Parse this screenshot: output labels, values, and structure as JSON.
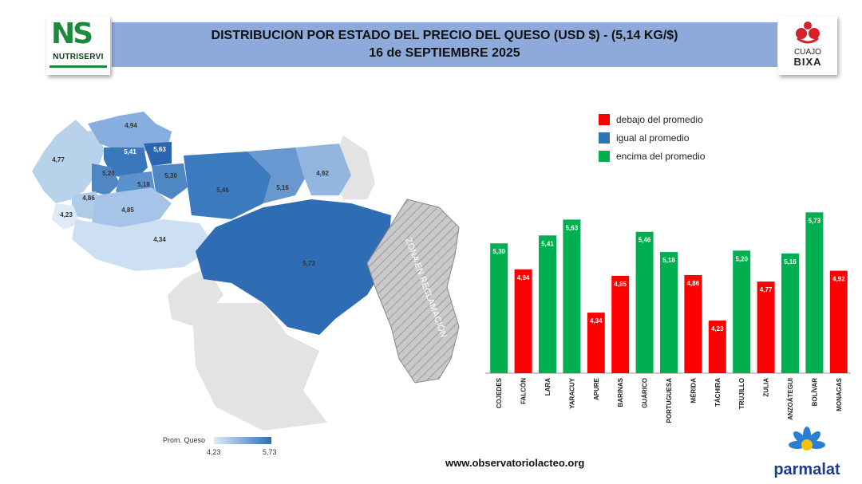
{
  "header": {
    "title_line1": "DISTRIBUCION POR ESTADO DEL PRECIO DEL QUESO (USD $)  - (5,14 KG/$)",
    "title_line2": "16 de SEPTIEMBRE 2025"
  },
  "logos": {
    "left_mark": "NS",
    "left_name": "NUTRISERVI",
    "right_line1": "CUAJO",
    "right_line2": "BIXA",
    "bottom_right": "parmalat"
  },
  "legend": {
    "items": [
      {
        "label": "debajo del promedio",
        "color": "#ff0000"
      },
      {
        "label": "igual al promedio",
        "color": "#2e75b6"
      },
      {
        "label": "encima del promedio",
        "color": "#00b050"
      }
    ]
  },
  "map": {
    "claim_zone_label": "ZONA EN RECLAMACIÓN",
    "scale_title": "Prom. Queso",
    "scale_min": "4,23",
    "scale_max": "5,73",
    "state_labels": [
      "4,94",
      "4,77",
      "5,41",
      "5,63",
      "5,20",
      "5,30",
      "5,18",
      "5,46",
      "5,16",
      "4,92",
      "4,86",
      "4,23",
      "4,85",
      "4,34",
      "5,73"
    ]
  },
  "footer": {
    "website": "www.observatoriolacteo.org"
  },
  "chart_data": {
    "type": "bar",
    "categories": [
      "COJEDES",
      "FALCÓN",
      "LARA",
      "YARACUY",
      "APURE",
      "BARINAS",
      "GUÁRICO",
      "PORTUGUESA",
      "MÉRIDA",
      "TÁCHIRA",
      "TRUJILLO",
      "ZULIA",
      "ANZOÁTEGUI",
      "BOLÍVAR",
      "MONAGAS"
    ],
    "values": [
      5.3,
      4.94,
      5.41,
      5.63,
      4.34,
      4.85,
      5.46,
      5.18,
      4.86,
      4.23,
      5.2,
      4.77,
      5.16,
      5.73,
      4.92
    ],
    "value_labels": [
      "5,30",
      "4,94",
      "5,41",
      "5,63",
      "4,34",
      "4,85",
      "5,46",
      "5,18",
      "4,86",
      "4,23",
      "5,20",
      "4,77",
      "5,16",
      "5,73",
      "4,92"
    ],
    "average": 5.14,
    "colors": {
      "above": "#00b050",
      "below": "#ff0000"
    },
    "ylim": [
      3.5,
      5.8
    ]
  }
}
